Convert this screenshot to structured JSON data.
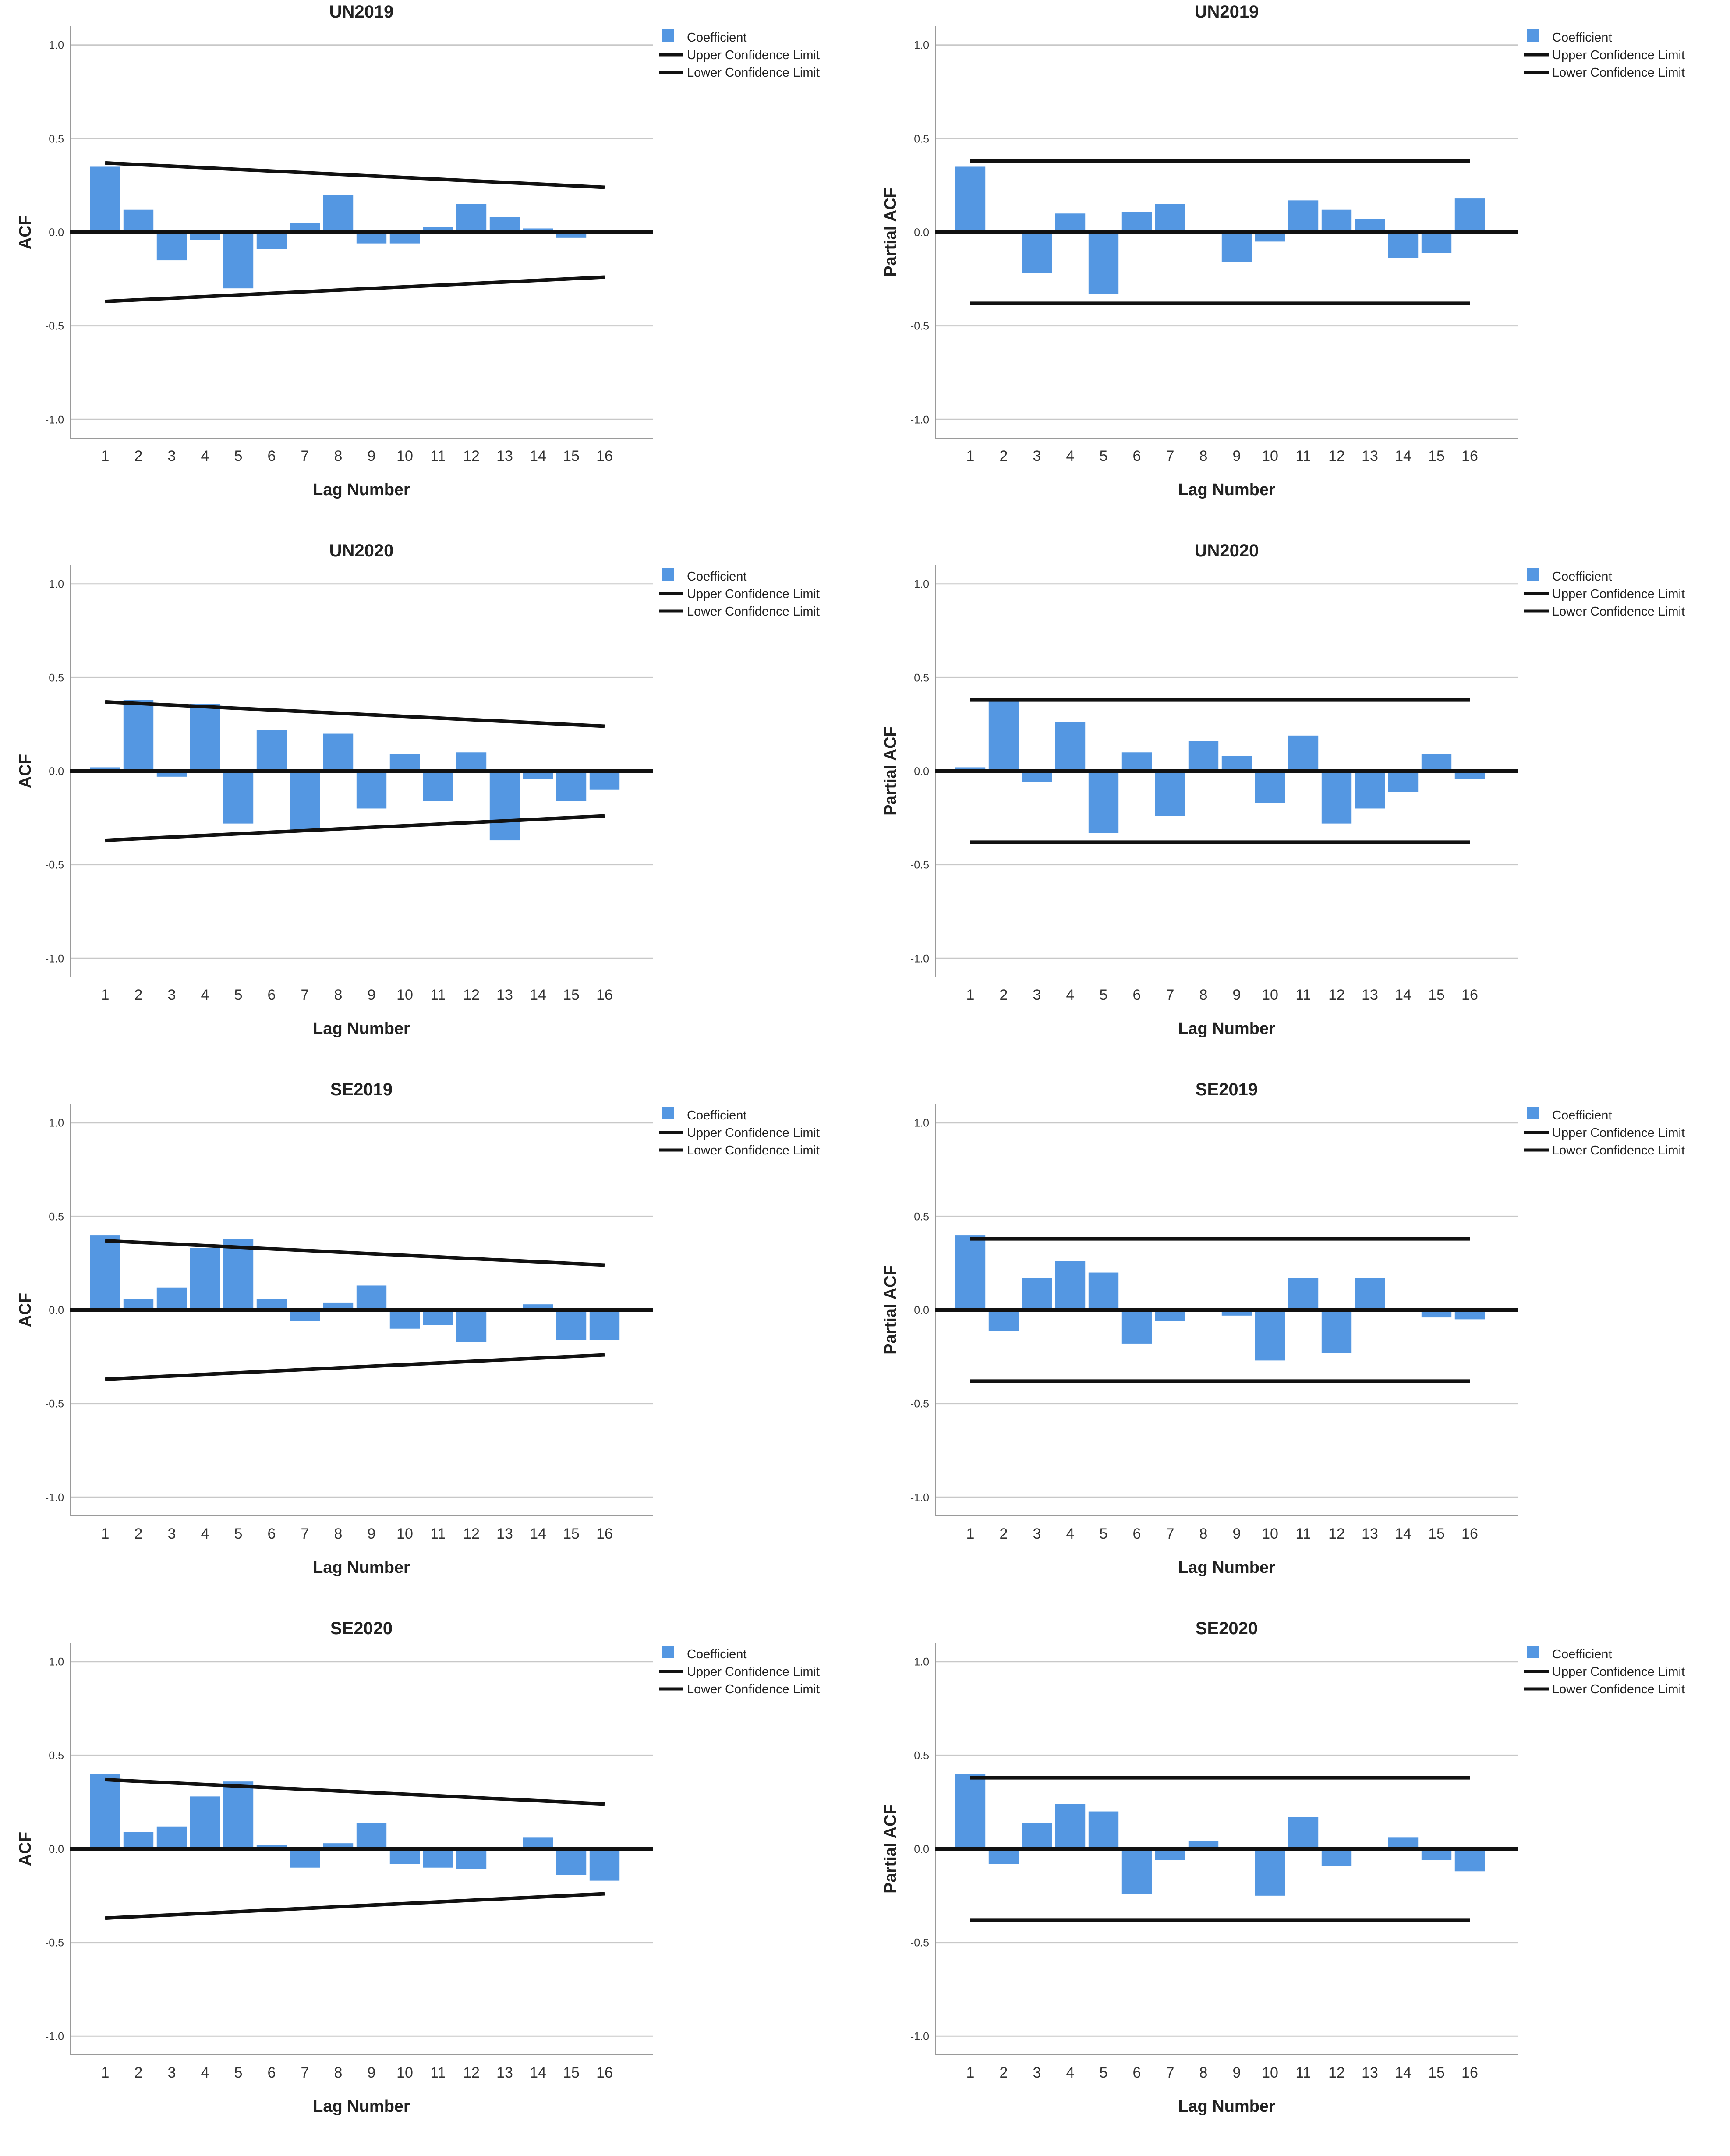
{
  "chart_data": [
    {
      "type": "bar",
      "panel": "acf",
      "title": "UN2019",
      "xlabel": "Lag Number",
      "ylabel": "ACF",
      "ylim": [
        -1.0,
        1.0
      ],
      "y_ticks": [
        "1.0",
        "0.5",
        "0.0",
        "-0.5",
        "-1.0"
      ],
      "categories": [
        "1",
        "2",
        "3",
        "4",
        "5",
        "6",
        "7",
        "8",
        "9",
        "10",
        "11",
        "12",
        "13",
        "14",
        "15",
        "16"
      ],
      "values": [
        0.35,
        0.12,
        -0.15,
        -0.04,
        -0.3,
        -0.09,
        0.05,
        0.2,
        -0.06,
        -0.06,
        0.03,
        0.15,
        0.08,
        0.02,
        -0.03,
        0.01
      ],
      "upper_confidence": [
        0.37,
        0.24
      ],
      "lower_confidence": [
        -0.37,
        -0.24
      ],
      "legend": [
        "Coefficient",
        "Upper Confidence Limit",
        "Lower Confidence Limit"
      ]
    },
    {
      "type": "bar",
      "panel": "pacf",
      "title": "UN2019",
      "xlabel": "Lag Number",
      "ylabel": "Partial ACF",
      "ylim": [
        -1.0,
        1.0
      ],
      "y_ticks": [
        "1.0",
        "0.5",
        "0.0",
        "-0.5",
        "-1.0"
      ],
      "categories": [
        "1",
        "2",
        "3",
        "4",
        "5",
        "6",
        "7",
        "8",
        "9",
        "10",
        "11",
        "12",
        "13",
        "14",
        "15",
        "16"
      ],
      "values": [
        0.35,
        0.0,
        -0.22,
        0.1,
        -0.33,
        0.11,
        0.15,
        0.0,
        -0.16,
        -0.05,
        0.17,
        0.12,
        0.07,
        -0.14,
        -0.11,
        0.18
      ],
      "upper_confidence": [
        0.38,
        0.38
      ],
      "lower_confidence": [
        -0.38,
        -0.38
      ],
      "legend": [
        "Coefficient",
        "Upper Confidence Limit",
        "Lower Confidence Limit"
      ]
    },
    {
      "type": "bar",
      "panel": "acf",
      "title": "UN2020",
      "xlabel": "Lag Number",
      "ylabel": "ACF",
      "ylim": [
        -1.0,
        1.0
      ],
      "y_ticks": [
        "1.0",
        "0.5",
        "0.0",
        "-0.5",
        "-1.0"
      ],
      "categories": [
        "1",
        "2",
        "3",
        "4",
        "5",
        "6",
        "7",
        "8",
        "9",
        "10",
        "11",
        "12",
        "13",
        "14",
        "15",
        "16"
      ],
      "values": [
        0.02,
        0.38,
        -0.03,
        0.36,
        -0.28,
        0.22,
        -0.32,
        0.2,
        -0.2,
        0.09,
        -0.16,
        0.1,
        -0.37,
        -0.04,
        -0.16,
        -0.1
      ],
      "upper_confidence": [
        0.37,
        0.24
      ],
      "lower_confidence": [
        -0.37,
        -0.24
      ],
      "legend": [
        "Coefficient",
        "Upper Confidence Limit",
        "Lower Confidence Limit"
      ]
    },
    {
      "type": "bar",
      "panel": "pacf",
      "title": "UN2020",
      "xlabel": "Lag Number",
      "ylabel": "Partial ACF",
      "ylim": [
        -1.0,
        1.0
      ],
      "y_ticks": [
        "1.0",
        "0.5",
        "0.0",
        "-0.5",
        "-1.0"
      ],
      "categories": [
        "1",
        "2",
        "3",
        "4",
        "5",
        "6",
        "7",
        "8",
        "9",
        "10",
        "11",
        "12",
        "13",
        "14",
        "15",
        "16"
      ],
      "values": [
        0.02,
        0.38,
        -0.06,
        0.26,
        -0.33,
        0.1,
        -0.24,
        0.16,
        0.08,
        -0.17,
        0.19,
        -0.28,
        -0.2,
        -0.11,
        0.09,
        -0.04
      ],
      "upper_confidence": [
        0.38,
        0.38
      ],
      "lower_confidence": [
        -0.38,
        -0.38
      ],
      "legend": [
        "Coefficient",
        "Upper Confidence Limit",
        "Lower Confidence Limit"
      ]
    },
    {
      "type": "bar",
      "panel": "acf",
      "title": "SE2019",
      "xlabel": "Lag Number",
      "ylabel": "ACF",
      "ylim": [
        -1.0,
        1.0
      ],
      "y_ticks": [
        "1.0",
        "0.5",
        "0.0",
        "-0.5",
        "-1.0"
      ],
      "categories": [
        "1",
        "2",
        "3",
        "4",
        "5",
        "6",
        "7",
        "8",
        "9",
        "10",
        "11",
        "12",
        "13",
        "14",
        "15",
        "16"
      ],
      "values": [
        0.4,
        0.06,
        0.12,
        0.33,
        0.38,
        0.06,
        -0.06,
        0.04,
        0.13,
        -0.1,
        -0.08,
        -0.17,
        -0.01,
        0.03,
        -0.16,
        -0.16
      ],
      "upper_confidence": [
        0.37,
        0.24
      ],
      "lower_confidence": [
        -0.37,
        -0.24
      ],
      "legend": [
        "Coefficient",
        "Upper Confidence Limit",
        "Lower Confidence Limit"
      ]
    },
    {
      "type": "bar",
      "panel": "pacf",
      "title": "SE2019",
      "xlabel": "Lag Number",
      "ylabel": "Partial ACF",
      "ylim": [
        -1.0,
        1.0
      ],
      "y_ticks": [
        "1.0",
        "0.5",
        "0.0",
        "-0.5",
        "-1.0"
      ],
      "categories": [
        "1",
        "2",
        "3",
        "4",
        "5",
        "6",
        "7",
        "8",
        "9",
        "10",
        "11",
        "12",
        "13",
        "14",
        "15",
        "16"
      ],
      "values": [
        0.4,
        -0.11,
        0.17,
        0.26,
        0.2,
        -0.18,
        -0.06,
        0.0,
        -0.03,
        -0.27,
        0.17,
        -0.23,
        0.17,
        0.0,
        -0.04,
        -0.05
      ],
      "upper_confidence": [
        0.38,
        0.38
      ],
      "lower_confidence": [
        -0.38,
        -0.38
      ],
      "legend": [
        "Coefficient",
        "Upper Confidence Limit",
        "Lower Confidence Limit"
      ]
    },
    {
      "type": "bar",
      "panel": "acf",
      "title": "SE2020",
      "xlabel": "Lag Number",
      "ylabel": "ACF",
      "ylim": [
        -1.0,
        1.0
      ],
      "y_ticks": [
        "1.0",
        "0.5",
        "0.0",
        "-0.5",
        "-1.0"
      ],
      "categories": [
        "1",
        "2",
        "3",
        "4",
        "5",
        "6",
        "7",
        "8",
        "9",
        "10",
        "11",
        "12",
        "13",
        "14",
        "15",
        "16"
      ],
      "values": [
        0.4,
        0.09,
        0.12,
        0.28,
        0.36,
        0.02,
        -0.1,
        0.03,
        0.14,
        -0.08,
        -0.1,
        -0.11,
        0.0,
        0.06,
        -0.14,
        -0.17
      ],
      "upper_confidence": [
        0.37,
        0.24
      ],
      "lower_confidence": [
        -0.37,
        -0.24
      ],
      "legend": [
        "Coefficient",
        "Upper Confidence Limit",
        "Lower Confidence Limit"
      ]
    },
    {
      "type": "bar",
      "panel": "pacf",
      "title": "SE2020",
      "xlabel": "Lag Number",
      "ylabel": "Partial ACF",
      "ylim": [
        -1.0,
        1.0
      ],
      "y_ticks": [
        "1.0",
        "0.5",
        "0.0",
        "-0.5",
        "-1.0"
      ],
      "categories": [
        "1",
        "2",
        "3",
        "4",
        "5",
        "6",
        "7",
        "8",
        "9",
        "10",
        "11",
        "12",
        "13",
        "14",
        "15",
        "16"
      ],
      "values": [
        0.4,
        -0.08,
        0.14,
        0.24,
        0.2,
        -0.24,
        -0.06,
        0.04,
        0.01,
        -0.25,
        0.17,
        -0.09,
        0.01,
        0.06,
        -0.06,
        -0.12
      ],
      "upper_confidence": [
        0.38,
        0.38
      ],
      "lower_confidence": [
        -0.38,
        -0.38
      ],
      "legend": [
        "Coefficient",
        "Upper Confidence Limit",
        "Lower Confidence Limit"
      ]
    }
  ],
  "colors": {
    "bar": "#5497e2",
    "line": "#111111",
    "grid": "#c8c8c8",
    "frame": "#9a9a9a"
  }
}
